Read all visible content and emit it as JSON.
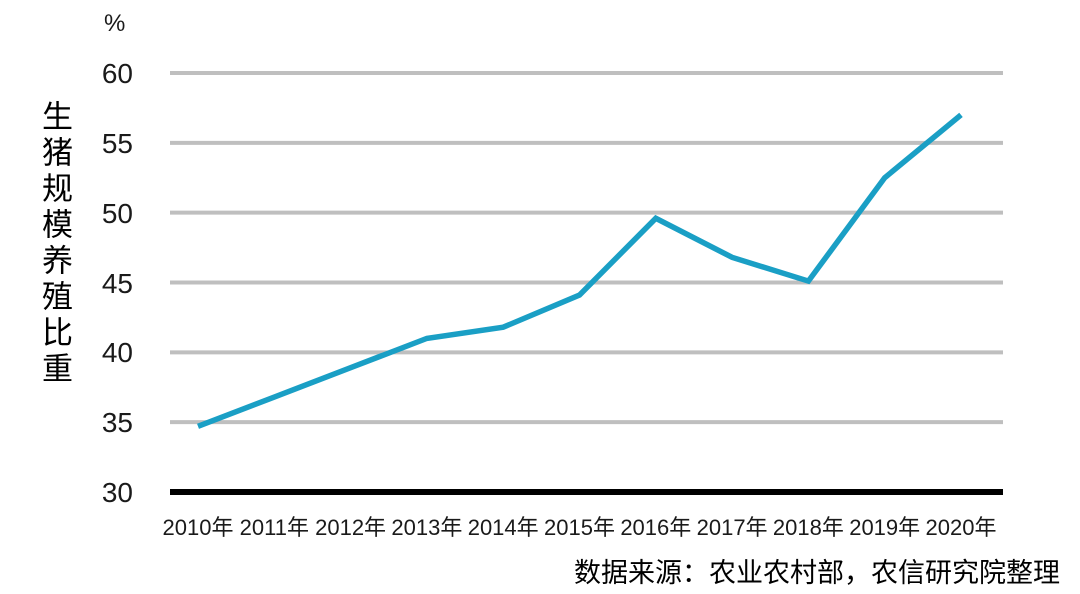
{
  "chart_data": {
    "type": "line",
    "title": "",
    "y_axis_title": "生猪规模养殖比重",
    "unit_label": "%",
    "categories": [
      "2010年",
      "2011年",
      "2012年",
      "2013年",
      "2014年",
      "2015年",
      "2016年",
      "2017年",
      "2018年",
      "2019年",
      "2020年"
    ],
    "series": [
      {
        "name": "生猪规模养殖比重",
        "values": [
          34.7,
          36.8,
          38.9,
          41.0,
          41.8,
          44.1,
          49.6,
          46.8,
          45.1,
          52.5,
          57.0
        ]
      }
    ],
    "ylim": [
      30,
      60
    ],
    "y_ticks": [
      30,
      35,
      40,
      45,
      50,
      55,
      60
    ],
    "grid": "horizontal-only",
    "legend_position": "none",
    "line_color": "#1A9FC5",
    "gridline_color": "#BFBFBF",
    "axis_color": "#000000",
    "source": "数据来源：农业农村部，农信研究院整理"
  }
}
